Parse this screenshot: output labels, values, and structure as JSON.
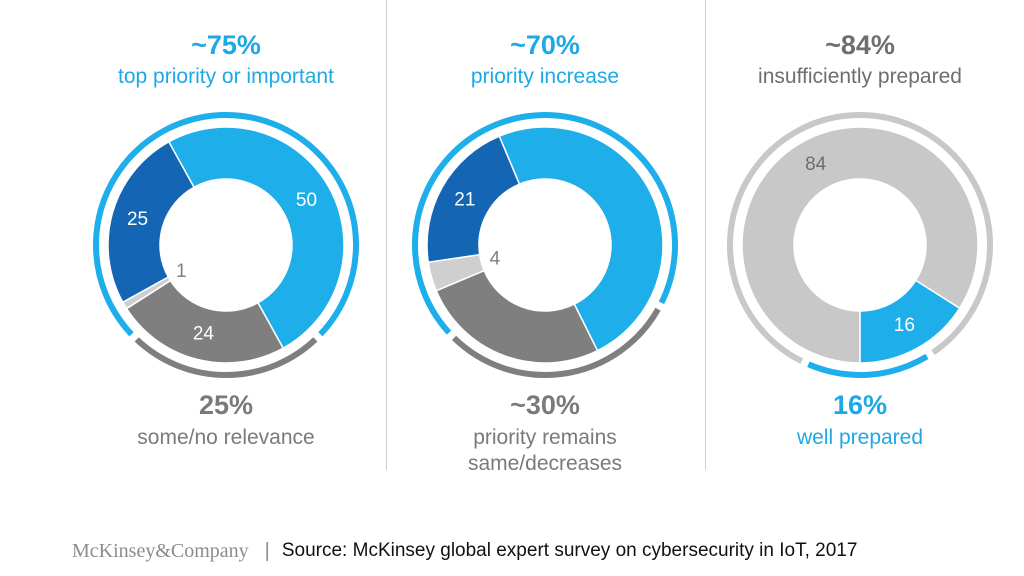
{
  "chart_data": [
    {
      "type": "pie",
      "top_value": "~75%",
      "top_label": "top priority or important",
      "bottom_value": "25%",
      "bottom_label": [
        "some/no relevance"
      ],
      "slices": [
        {
          "value": 50,
          "label": "50",
          "color": "#1eaeea",
          "label_color": "#ffffff"
        },
        {
          "value": 24,
          "label": "24",
          "color": "#7f7f7f",
          "label_color": "#ffffff"
        },
        {
          "value": 1,
          "label": "1",
          "color": "#cfcfcf",
          "label_color": "#7f7f7f"
        },
        {
          "value": 25,
          "label": "25",
          "color": "#1565b5",
          "label_color": "#ffffff"
        }
      ],
      "arcs": [
        {
          "value": 75,
          "color": "#1eaeea"
        },
        {
          "value": 25,
          "color": "#7f7f7f"
        }
      ]
    },
    {
      "type": "pie",
      "top_value": "~70%",
      "top_label": "priority increase",
      "bottom_value": "~30%",
      "bottom_label": [
        "priority remains",
        "same/decreases"
      ],
      "slices": [
        {
          "value": 49,
          "label": "",
          "color": "#1eaeea",
          "label_color": "#ffffff"
        },
        {
          "value": 26,
          "label": "",
          "color": "#7f7f7f",
          "label_color": "#ffffff"
        },
        {
          "value": 4,
          "label": "4",
          "color": "#cfcfcf",
          "label_color": "#7f7f7f"
        },
        {
          "value": 21,
          "label": "21",
          "color": "#1565b5",
          "label_color": "#ffffff"
        }
      ],
      "arcs": [
        {
          "value": 70,
          "color": "#1eaeea"
        },
        {
          "value": 30,
          "color": "#7f7f7f"
        }
      ]
    },
    {
      "type": "pie",
      "top_value": "~84%",
      "top_label": "insufficiently prepared",
      "bottom_value": "16%",
      "bottom_label": [
        "well prepared"
      ],
      "slices": [
        {
          "value": 84,
          "label": "84",
          "color": "#c8c8c8",
          "label_color": "#6e6e6e"
        },
        {
          "value": 16,
          "label": "16",
          "color": "#1eaeea",
          "label_color": "#ffffff"
        }
      ],
      "arcs": [
        {
          "value": 84,
          "color": "#c8c8c8"
        },
        {
          "value": 16,
          "color": "#1eaeea"
        }
      ]
    }
  ],
  "footer": {
    "brand": "McKinsey&Company",
    "separator": "|",
    "source": "Source: McKinsey global expert survey on cybersecurity in IoT, 2017"
  },
  "colors": {
    "blue": "#1eaeea",
    "dark_blue": "#1565b5",
    "grey": "#7f7f7f",
    "light_grey": "#c8c8c8"
  }
}
